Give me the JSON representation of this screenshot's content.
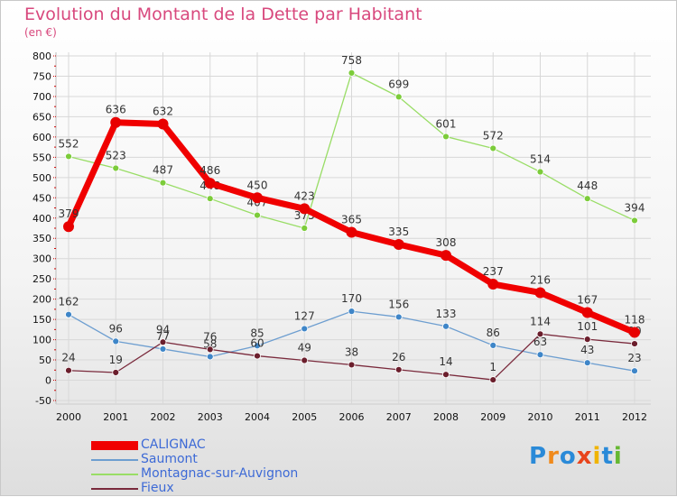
{
  "title": "Evolution du Montant de la Dette par Habitant",
  "unit": "(en €)",
  "logo": "Proxiti",
  "colors": {
    "title": "#d8487d",
    "grid": "#d8d8d8",
    "legend_text": "#3d6ad6"
  },
  "chart_data": {
    "type": "line",
    "categories": [
      "2000",
      "2001",
      "2002",
      "2003",
      "2004",
      "2005",
      "2006",
      "2007",
      "2008",
      "2009",
      "2010",
      "2011",
      "2012"
    ],
    "ylim": [
      -50,
      800
    ],
    "ytick_step": 50,
    "grid": true,
    "legend_position": "bottom-left",
    "series": [
      {
        "name": "CALIGNAC",
        "color": "#f00000",
        "marker_color": "#e80000",
        "width": 7,
        "marker_radius": 6,
        "values": [
          379,
          636,
          632,
          486,
          450,
          423,
          365,
          335,
          308,
          237,
          216,
          167,
          118
        ]
      },
      {
        "name": "Saumont",
        "color": "#6d9ed0",
        "marker_color": "#3f86c8",
        "width": 1.3,
        "marker_radius": 3.5,
        "values": [
          162,
          96,
          77,
          58,
          85,
          127,
          170,
          156,
          133,
          86,
          63,
          43,
          23
        ]
      },
      {
        "name": "Montagnac-sur-Auvignon",
        "color": "#99dd66",
        "marker_color": "#7ccc3a",
        "width": 1.3,
        "marker_radius": 3.5,
        "values": [
          552,
          523,
          487,
          448,
          407,
          375,
          758,
          699,
          601,
          572,
          514,
          448,
          394
        ]
      },
      {
        "name": "Fieux",
        "color": "#7a2a3c",
        "marker_color": "#6b1e2c",
        "width": 1.3,
        "marker_radius": 3.5,
        "values": [
          24,
          19,
          94,
          76,
          60,
          49,
          38,
          26,
          14,
          1,
          114,
          101,
          90
        ]
      }
    ]
  }
}
